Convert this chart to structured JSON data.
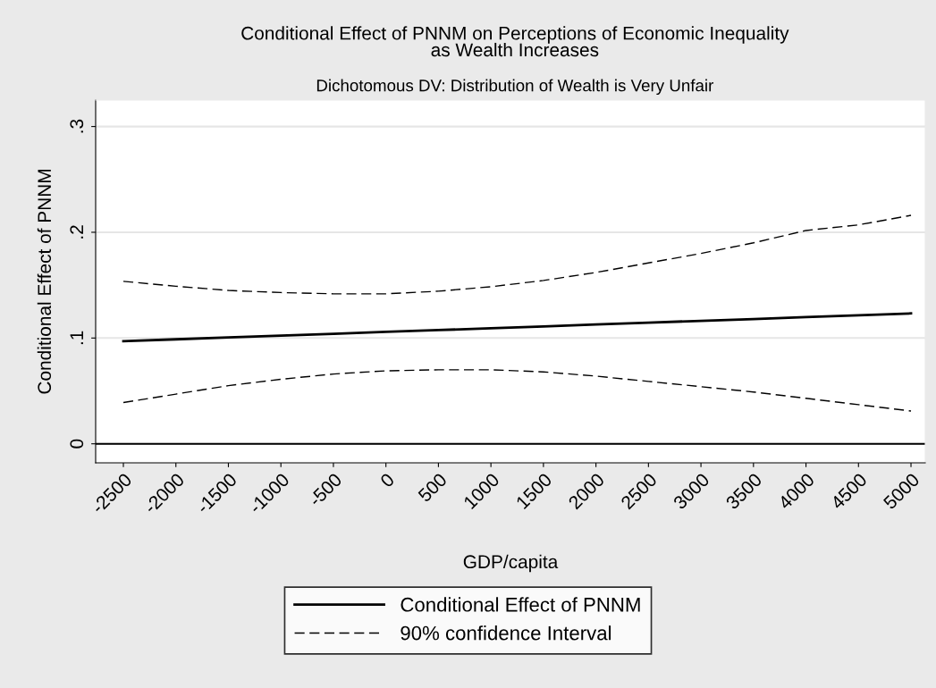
{
  "chart_data": {
    "type": "line",
    "title": "Conditional Effect of PNNM on Perceptions of Economic Inequality\nas Wealth Increases",
    "subtitle": "Dichotomous DV: Distribution of Wealth is Very Unfair",
    "xlabel": "GDP/capita",
    "ylabel": "Conditional Effect of PNNM",
    "x": [
      -2500,
      -2000,
      -1500,
      -1000,
      -500,
      0,
      500,
      1000,
      1500,
      2000,
      2500,
      3000,
      3500,
      4000,
      4500,
      5000
    ],
    "series": [
      {
        "name": "Conditional Effect of PNNM",
        "color": "#000000",
        "line_style": "solid",
        "values": [
          0.097,
          0.0988,
          0.1005,
          0.1023,
          0.104,
          0.1058,
          0.1075,
          0.1093,
          0.111,
          0.1128,
          0.1145,
          0.1163,
          0.118,
          0.1198,
          0.1215,
          0.1233
        ]
      },
      {
        "name": "90% confidence Interval",
        "color": "#000000",
        "line_style": "dashed",
        "values": [
          0.1536,
          0.149,
          0.145,
          0.143,
          0.1418,
          0.1418,
          0.1443,
          0.1485,
          0.1544,
          0.162,
          0.171,
          0.18,
          0.19,
          0.2017,
          0.207,
          0.216
        ]
      },
      {
        "color": "#000000",
        "line_style": "dashed",
        "values": [
          0.039,
          0.047,
          0.055,
          0.061,
          0.066,
          0.069,
          0.07,
          0.07,
          0.068,
          0.064,
          0.059,
          0.054,
          0.049,
          0.043,
          0.037,
          0.031
        ]
      }
    ],
    "xlim": [
      -2764,
      5136
    ],
    "xticks": [
      -2500,
      -2000,
      -1500,
      -1000,
      -500,
      0,
      500,
      1000,
      1500,
      2000,
      2500,
      3000,
      3500,
      4000,
      4500,
      5000
    ],
    "ylim": [
      -0.018,
      0.325
    ],
    "yticks": [
      {
        "value": 0,
        "label": "0"
      },
      {
        "value": 0.1,
        "label": ".1"
      },
      {
        "value": 0.2,
        "label": ".2"
      },
      {
        "value": 0.3,
        "label": ".3"
      }
    ],
    "ref_lines": [
      {
        "axis": "y",
        "value": 0,
        "color": "#000000",
        "line_style": "solid"
      }
    ],
    "grid": "y",
    "legend": "bottom"
  }
}
